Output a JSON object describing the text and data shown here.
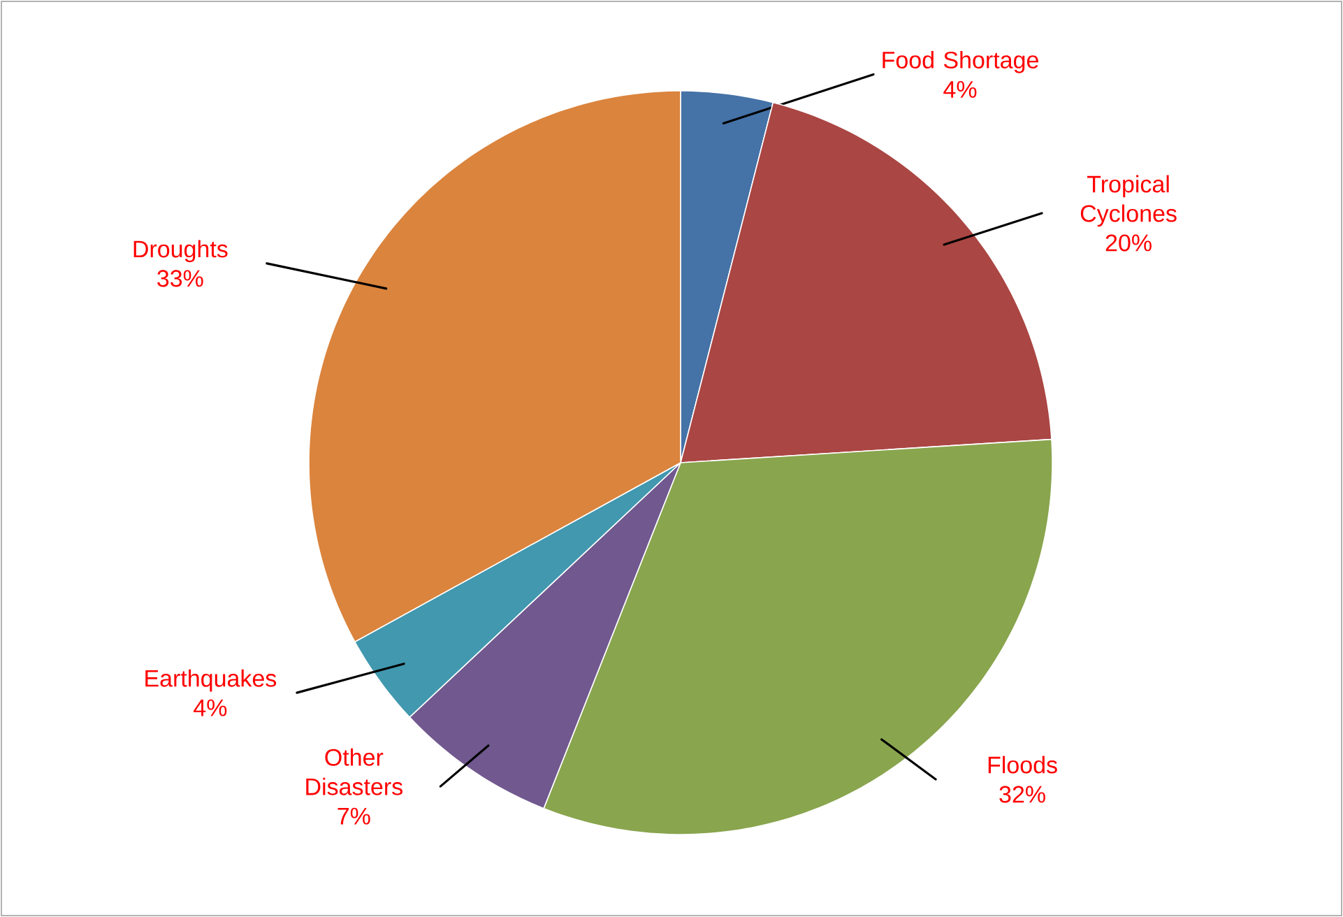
{
  "chart_data": {
    "type": "pie",
    "categories": [
      "Food Shortage",
      "Tropical Cyclones",
      "Floods",
      "Other Disasters",
      "Earthquakes",
      "Droughts"
    ],
    "values": [
      4,
      20,
      32,
      7,
      4,
      33
    ],
    "value_labels": [
      "4%",
      "20%",
      "32%",
      "7%",
      "4%",
      "33%"
    ],
    "colors": [
      "#4572a7",
      "#aa4643",
      "#89a54e",
      "#71588f",
      "#4198af",
      "#db843d"
    ]
  }
}
